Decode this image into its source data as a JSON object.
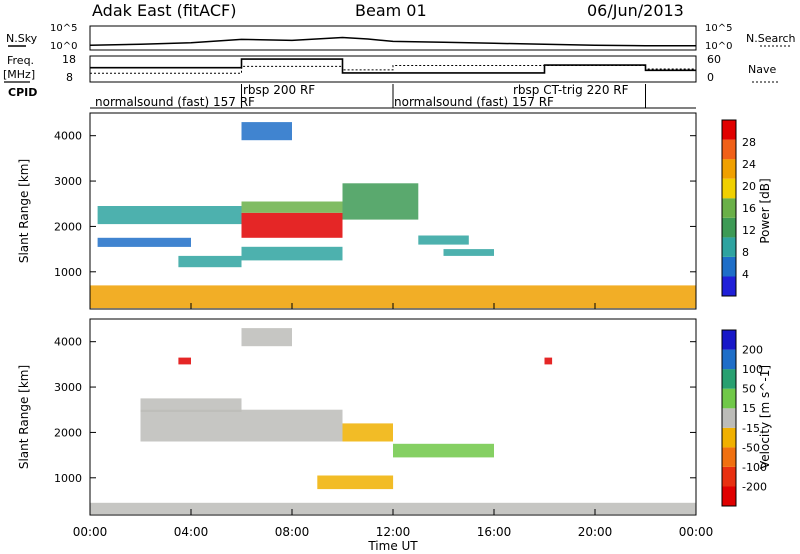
{
  "header": {
    "station": "Adak East (fitACF)",
    "beam": "Beam 01",
    "date": "06/Jun/2013"
  },
  "noise_panel": {
    "left_label": "N.Sky",
    "right_label": "N.Search",
    "left_ticks": [
      "10^5",
      "10^0"
    ],
    "right_ticks": [
      "10^5",
      "10^0"
    ]
  },
  "freq_panel": {
    "left_label_line1": "Freq.",
    "left_label_line2": "[MHz]",
    "left_ticks": [
      "18",
      "8"
    ],
    "right_label": "Nave",
    "right_ticks": [
      "60",
      "0"
    ]
  },
  "cpid_panel": {
    "label": "CPID",
    "programs": [
      {
        "text": "normalsound (fast) 157 RF"
      },
      {
        "text": "rbsp 200 RF"
      },
      {
        "text": "normalsound (fast) 157 RF"
      },
      {
        "text": "rbsp CT-trig 220 RF"
      }
    ]
  },
  "x_axis": {
    "label": "Time UT",
    "ticks": [
      "00:00",
      "04:00",
      "08:00",
      "12:00",
      "16:00",
      "20:00",
      "00:00"
    ]
  },
  "y_axis": {
    "label": "Slant Range [km]",
    "ticks": [
      "1000",
      "2000",
      "3000",
      "4000"
    ]
  },
  "colors": {
    "frame": "#000000",
    "power_scale": [
      "#2020d8",
      "#1e6ec8",
      "#2ea3a0",
      "#3d9a55",
      "#6ab048",
      "#f0d000",
      "#f0a000",
      "#f06018",
      "#e00000"
    ],
    "velocity_scale": [
      "#1818c8",
      "#1e6ec8",
      "#28a070",
      "#70c848",
      "#bcbcb8",
      "#f0b000",
      "#f07010",
      "#e83010",
      "#e00000"
    ]
  },
  "power_colorbar": {
    "label": "Power [dB]",
    "ticks": [
      "4",
      "8",
      "12",
      "16",
      "20",
      "24",
      "28"
    ]
  },
  "velocity_colorbar": {
    "label": "Velocity [m s^-1]",
    "ticks": [
      "200",
      "100",
      "50",
      "15",
      "-15",
      "-50",
      "-100",
      "-200"
    ]
  },
  "chart_data": [
    {
      "type": "line",
      "title": "Adak East (fitACF) Beam 01 06/Jun/2013",
      "xlim": [
        0,
        24
      ],
      "series": [
        {
          "name": "N.Sky",
          "x": [
            0,
            2,
            4,
            6,
            8,
            10,
            11,
            12,
            14,
            16,
            18,
            20,
            22,
            24
          ],
          "values": [
            1.0,
            1.2,
            1.5,
            2.2,
            2.0,
            2.6,
            2.3,
            1.8,
            1.6,
            1.4,
            1.2,
            1.0,
            0.9,
            0.9
          ]
        }
      ]
    },
    {
      "type": "line",
      "xlim": [
        0,
        24
      ],
      "ylim": [
        8,
        18
      ],
      "series": [
        {
          "name": "Freq.",
          "x": [
            0,
            6,
            6,
            10,
            10,
            18,
            18,
            22,
            22,
            24
          ],
          "values": [
            13.5,
            13.5,
            16.8,
            16.8,
            11.5,
            11.5,
            14.5,
            14.5,
            12.5,
            12.5
          ]
        },
        {
          "name": "Nave",
          "x": [
            0,
            6,
            6,
            10,
            10,
            12,
            12,
            22,
            22,
            24
          ],
          "values": [
            20,
            20,
            36,
            36,
            28,
            28,
            38,
            38,
            30,
            30
          ]
        }
      ]
    },
    {
      "type": "heatmap",
      "xlabel": "Time UT",
      "ylabel": "Slant Range [km]",
      "xlim": [
        0,
        24
      ],
      "ylim": [
        180,
        4500
      ],
      "colorbar": "Power [dB]",
      "colorbar_range": [
        0,
        30
      ],
      "regions": [
        {
          "t0": 0.3,
          "t1": 6.0,
          "r0": 2050,
          "r1": 2450,
          "value": 8
        },
        {
          "t0": 6.0,
          "t1": 10.0,
          "r0": 1750,
          "r1": 2300,
          "value": 27
        },
        {
          "t0": 6.0,
          "t1": 10.0,
          "r0": 2300,
          "r1": 2550,
          "value": 14
        },
        {
          "t0": 0.3,
          "t1": 4.0,
          "r0": 1550,
          "r1": 1750,
          "value": 6
        },
        {
          "t0": 3.5,
          "t1": 6.0,
          "r0": 1100,
          "r1": 1350,
          "value": 8
        },
        {
          "t0": 6.0,
          "t1": 10.0,
          "r0": 1250,
          "r1": 1550,
          "value": 7
        },
        {
          "t0": 10.0,
          "t1": 13.0,
          "r0": 2150,
          "r1": 2950,
          "value": 10
        },
        {
          "t0": 13.0,
          "t1": 15.0,
          "r0": 1600,
          "r1": 1800,
          "value": 7
        },
        {
          "t0": 14.0,
          "t1": 16.0,
          "r0": 1350,
          "r1": 1500,
          "value": 9
        },
        {
          "t0": 6.0,
          "t1": 8.0,
          "r0": 3900,
          "r1": 4300,
          "value": 5
        },
        {
          "t0": 0.0,
          "t1": 24.0,
          "r0": 200,
          "r1": 700,
          "value": 20
        }
      ]
    },
    {
      "type": "heatmap",
      "xlabel": "Time UT",
      "ylabel": "Slant Range [km]",
      "xlim": [
        0,
        24
      ],
      "ylim": [
        180,
        4500
      ],
      "colorbar": "Velocity [m s^-1]",
      "colorbar_range": [
        -200,
        200
      ],
      "regions": [
        {
          "t0": 2.0,
          "t1": 10.0,
          "r0": 1800,
          "r1": 2500,
          "value": 0
        },
        {
          "t0": 2.0,
          "t1": 6.0,
          "r0": 2450,
          "r1": 2750,
          "value": 0
        },
        {
          "t0": 6.0,
          "t1": 8.0,
          "r0": 3900,
          "r1": 4300,
          "value": 0
        },
        {
          "t0": 10.0,
          "t1": 12.0,
          "r0": 1800,
          "r1": 2200,
          "value": -60
        },
        {
          "t0": 12.0,
          "t1": 16.0,
          "r0": 1450,
          "r1": 1750,
          "value": 50
        },
        {
          "t0": 9.0,
          "t1": 12.0,
          "r0": 750,
          "r1": 1050,
          "value": -60
        },
        {
          "t0": 3.5,
          "t1": 4.0,
          "r0": 3500,
          "r1": 3650,
          "value": -220
        },
        {
          "t0": 18.0,
          "t1": 18.3,
          "r0": 3500,
          "r1": 3650,
          "value": -220
        },
        {
          "t0": 0.0,
          "t1": 24.0,
          "r0": 200,
          "r1": 450,
          "value": 20
        }
      ]
    }
  ]
}
